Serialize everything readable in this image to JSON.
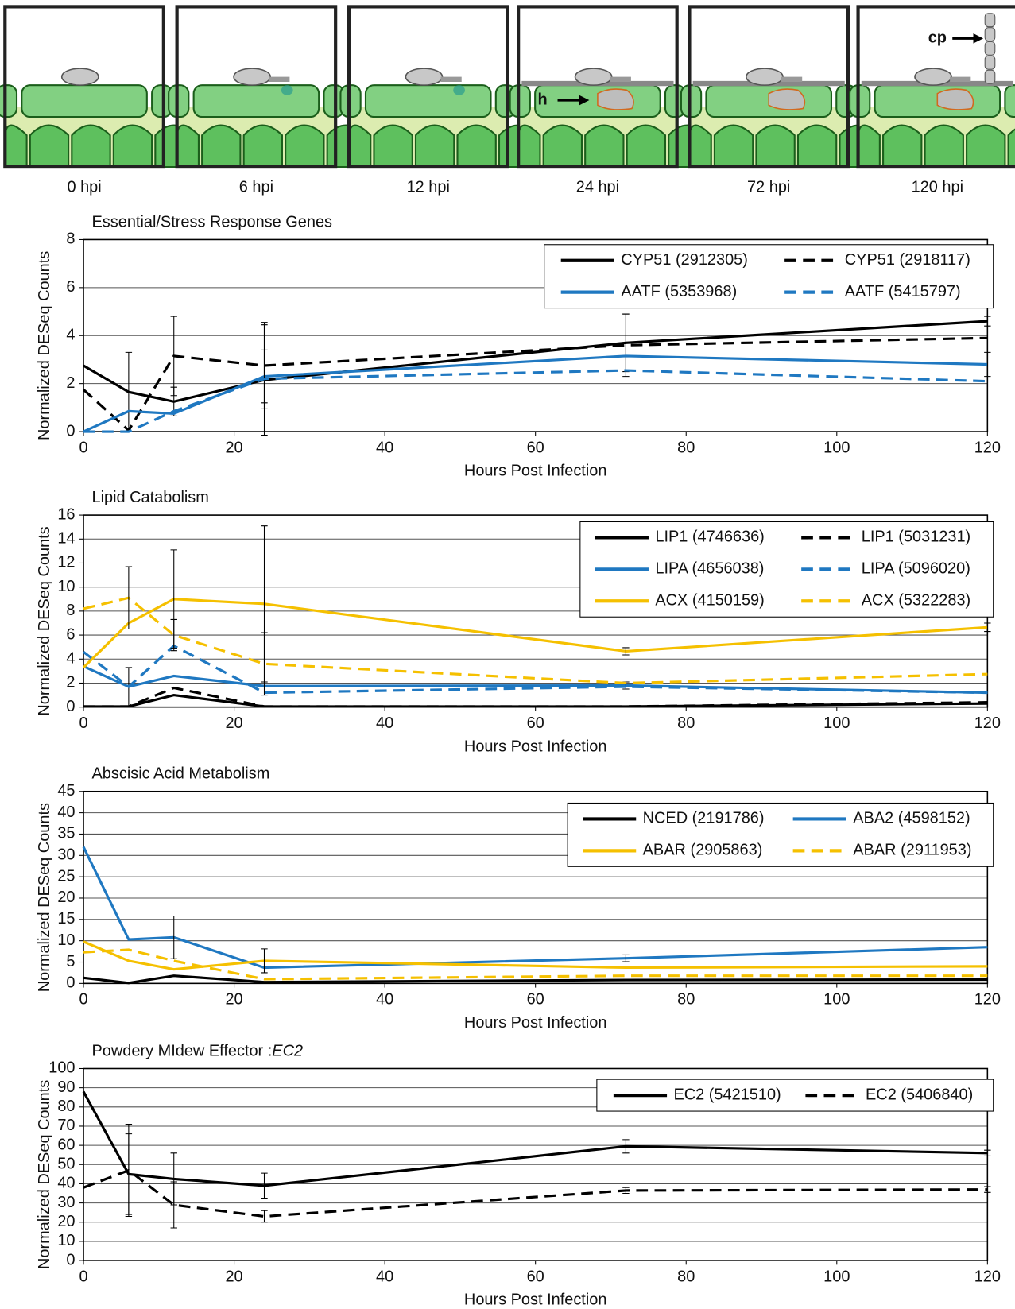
{
  "figure": {
    "panels": [
      {
        "label": "0 hpi"
      },
      {
        "label": "6 hpi"
      },
      {
        "label": "12 hpi"
      },
      {
        "label": "24 hpi"
      },
      {
        "label": "72 hpi"
      },
      {
        "label": "120 hpi"
      }
    ],
    "annotations": [
      "h",
      "cp"
    ]
  },
  "chart_data": [
    {
      "type": "line",
      "title": "Essential/Stress Response Genes",
      "x_label": "Hours Post Infection",
      "y_label": "Normalized DESeq Counts",
      "x": [
        0,
        6,
        12,
        24,
        72,
        120
      ],
      "xlim": [
        0,
        120
      ],
      "xticks": [
        0,
        20,
        40,
        60,
        80,
        100,
        120
      ],
      "ylim": [
        0,
        8
      ],
      "yticks": [
        0,
        2,
        4,
        6,
        8
      ],
      "grid": true,
      "series": [
        {
          "name": "CYP51 (2912305)",
          "color": "#000000",
          "line_style": "solid",
          "values": [
            2.75,
            1.65,
            1.25,
            2.15,
            3.7,
            4.6
          ],
          "errors": [
            null,
            1.65,
            0.6,
            2.3,
            1.2,
            0.2
          ]
        },
        {
          "name": "CYP51 (2918117)",
          "color": "#000000",
          "line_style": "dashed",
          "values": [
            1.75,
            0.05,
            3.15,
            2.75,
            3.6,
            3.9
          ],
          "errors": [
            null,
            null,
            1.65,
            1.8,
            1.3,
            null
          ]
        },
        {
          "name": "AATF (5353968)",
          "color": "#1f78c1",
          "line_style": "solid",
          "values": [
            0,
            0.85,
            0.75,
            2.3,
            3.15,
            2.8
          ],
          "errors": [
            null,
            null,
            null,
            1.1,
            null,
            0.5
          ]
        },
        {
          "name": "AATF (5415797)",
          "color": "#1f78c1",
          "line_style": "dashed",
          "values": [
            0,
            0,
            0.85,
            2.2,
            2.55,
            2.1
          ]
        }
      ]
    },
    {
      "type": "line",
      "title": "Lipid Catabolism",
      "x_label": "Hours Post Infection",
      "y_label": "Normalized DESeq Counts",
      "x": [
        0,
        6,
        12,
        24,
        72,
        120
      ],
      "xlim": [
        0,
        120
      ],
      "xticks": [
        0,
        20,
        40,
        60,
        80,
        100,
        120
      ],
      "ylim": [
        0,
        16
      ],
      "yticks": [
        0,
        2,
        4,
        6,
        8,
        10,
        12,
        14,
        16
      ],
      "grid": true,
      "series": [
        {
          "name": "LIP1 (4746636)",
          "color": "#000000",
          "line_style": "solid",
          "values": [
            0.05,
            0.05,
            1.0,
            0.05,
            0.05,
            0.3
          ]
        },
        {
          "name": "LIP1 (5031231)",
          "color": "#000000",
          "line_style": "dashed",
          "values": [
            0.05,
            0.05,
            1.6,
            0.05,
            0.05,
            0.4
          ]
        },
        {
          "name": "LIPA (4656038)",
          "color": "#1f78c1",
          "line_style": "solid",
          "values": [
            3.4,
            1.7,
            2.6,
            1.75,
            1.8,
            1.2
          ],
          "errors": [
            null,
            1.6,
            null,
            null,
            0.3,
            null
          ]
        },
        {
          "name": "LIPA (5096020)",
          "color": "#1f78c1",
          "line_style": "dashed",
          "values": [
            4.6,
            1.7,
            5.1,
            1.2,
            1.7,
            1.2
          ]
        },
        {
          "name": "ACX (4150159)",
          "color": "#f5c000",
          "line_style": "solid",
          "values": [
            3.3,
            7.0,
            9.0,
            8.6,
            4.65,
            6.65
          ],
          "errors": [
            null,
            null,
            4.1,
            6.5,
            0.3,
            0.35
          ]
        },
        {
          "name": "ACX (5322283)",
          "color": "#f5c000",
          "line_style": "dashed",
          "values": [
            8.2,
            9.1,
            6.0,
            3.6,
            2.0,
            2.75
          ],
          "errors": [
            null,
            2.6,
            1.3,
            2.6,
            null,
            null
          ]
        }
      ]
    },
    {
      "type": "line",
      "title": "Abscisic Acid Metabolism",
      "x_label": "Hours Post Infection",
      "y_label": "Normalized DESeq Counts",
      "x": [
        0,
        6,
        12,
        24,
        72,
        120
      ],
      "xlim": [
        0,
        120
      ],
      "xticks": [
        0,
        20,
        40,
        60,
        80,
        100,
        120
      ],
      "ylim": [
        0,
        45
      ],
      "yticks": [
        0,
        5,
        10,
        15,
        20,
        25,
        30,
        35,
        40,
        45
      ],
      "grid": true,
      "series": [
        {
          "name": "NCED (2191786)",
          "color": "#000000",
          "line_style": "solid",
          "values": [
            1.3,
            0.1,
            1.8,
            0.3,
            0.8,
            0.9
          ]
        },
        {
          "name": "ABA2 (4598152)",
          "color": "#1f78c1",
          "line_style": "solid",
          "values": [
            32,
            10.3,
            10.8,
            3.7,
            5.9,
            8.5
          ],
          "errors": [
            null,
            null,
            5.0,
            null,
            0.8,
            null
          ]
        },
        {
          "name": "ABAR (2905863)",
          "color": "#f5c000",
          "line_style": "solid",
          "values": [
            9.8,
            5.3,
            3.3,
            5.3,
            3.7,
            4.0
          ],
          "errors": [
            null,
            null,
            null,
            2.8,
            null,
            null
          ]
        },
        {
          "name": "ABAR (2911953)",
          "color": "#f5c000",
          "line_style": "dashed",
          "values": [
            7.3,
            7.9,
            5.3,
            1.0,
            1.8,
            1.8
          ]
        }
      ]
    },
    {
      "type": "line",
      "title": "Powdery MIdew Effector :",
      "title_emphasis": "EC2",
      "x_label": "Hours Post Infection",
      "y_label": "Normalized DESeq Counts",
      "x": [
        0,
        6,
        12,
        24,
        72,
        120
      ],
      "xlim": [
        0,
        120
      ],
      "xticks": [
        0,
        20,
        40,
        60,
        80,
        100,
        120
      ],
      "ylim": [
        0,
        100
      ],
      "yticks": [
        0,
        10,
        20,
        30,
        40,
        50,
        60,
        70,
        80,
        90,
        100
      ],
      "grid": true,
      "series": [
        {
          "name": "EC2 (5421510)",
          "color": "#000000",
          "line_style": "solid",
          "values": [
            88,
            45,
            42.5,
            39,
            59.5,
            56
          ],
          "errors": [
            null,
            21,
            13.5,
            6.5,
            3.5,
            1.5
          ]
        },
        {
          "name": "EC2 (5406840)",
          "color": "#000000",
          "line_style": "dashed",
          "values": [
            38,
            47,
            29,
            23,
            36.5,
            37
          ],
          "errors": [
            null,
            24,
            12,
            3,
            1.5,
            1.5
          ]
        }
      ]
    }
  ]
}
